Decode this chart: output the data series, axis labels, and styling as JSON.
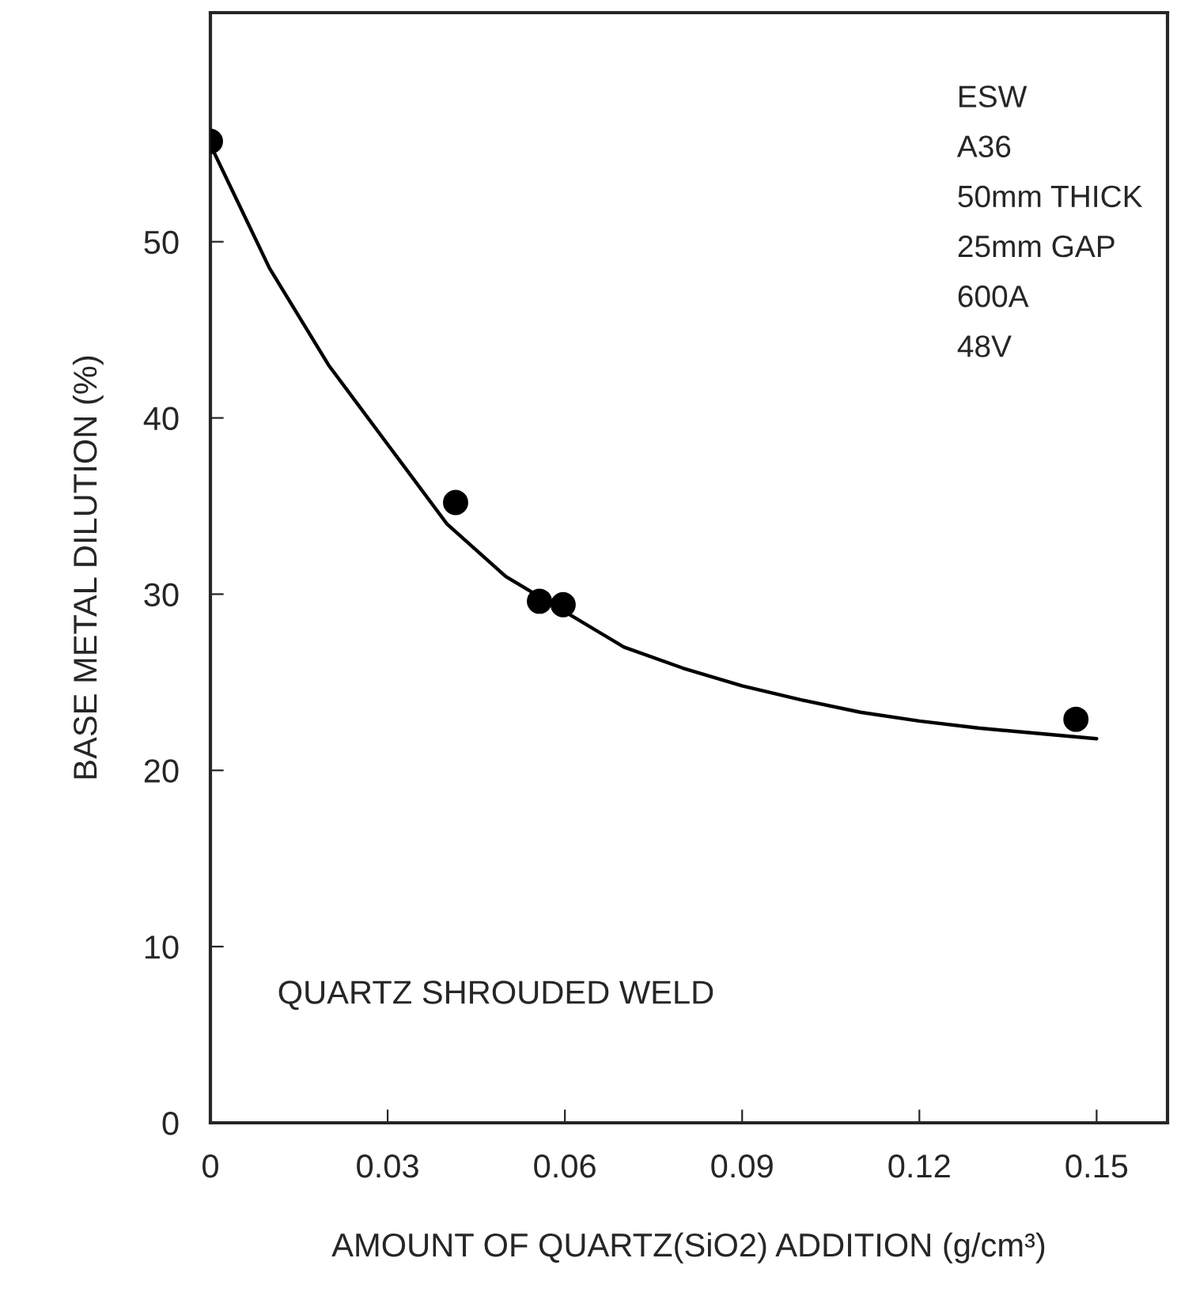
{
  "chart_data": {
    "type": "scatter",
    "xlabel": "AMOUNT OF QUARTZ(SiO2) ADDITION (g/cm³)",
    "ylabel": "BASE METAL DILUTION (%)",
    "xlim": [
      0,
      0.162
    ],
    "xticks": [
      {
        "value": 0,
        "label": "0"
      },
      0.03,
      0.06,
      0.09,
      0.12,
      0.15
    ],
    "ylim": [
      0,
      63
    ],
    "yticks": [
      0,
      10,
      20,
      30,
      40,
      50
    ],
    "grid": false,
    "annotations": [
      "ESW",
      "A36",
      "50mm THICK",
      "25mm GAP",
      "600A",
      "48V",
      "QUARTZ SHROUDED WELD"
    ],
    "series": [
      {
        "marker": "circle",
        "color": "#000000",
        "x": [
          0,
          0.0415,
          0.0557,
          0.0597,
          0.1465
        ],
        "values": [
          55.7,
          35.2,
          29.6,
          29.4,
          22.9
        ]
      },
      {
        "type": "line",
        "color": "#000000",
        "line_style": "solid",
        "x": [
          0,
          0.01,
          0.02,
          0.03,
          0.04,
          0.05,
          0.06,
          0.07,
          0.08,
          0.09,
          0.1,
          0.11,
          0.12,
          0.13,
          0.14,
          0.15
        ],
        "values": [
          55.5,
          48.5,
          43,
          38.5,
          34,
          31,
          29,
          27,
          25.8,
          24.8,
          24,
          23.3,
          22.8,
          22.4,
          22.1,
          21.8
        ]
      }
    ]
  }
}
